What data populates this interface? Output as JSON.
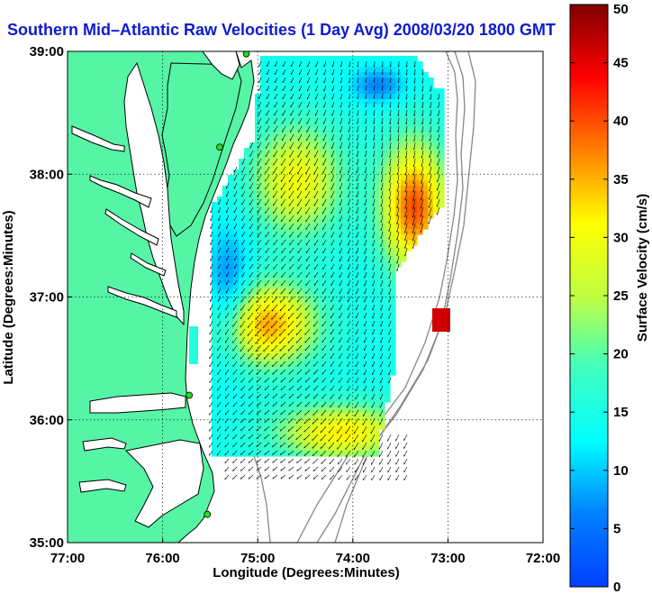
{
  "chart_data": {
    "type": "heatmap",
    "title": "Southern Mid–Atlantic Raw Velocities (1 Day Avg) 2008/03/20 1800 GMT",
    "xlabel": "Longitude (Degrees:Minutes)",
    "ylabel": "Latitude (Degrees:Minutes)",
    "xlim": [
      -77,
      -72
    ],
    "ylim": [
      35,
      39
    ],
    "x_ticks": [
      "77:00",
      "76:00",
      "75:00",
      "74:00",
      "73:00",
      "72:00"
    ],
    "y_ticks": [
      "35:00",
      "36:00",
      "37:00",
      "38:00",
      "39:00"
    ],
    "grid": true,
    "colorbar": {
      "label": "Surface Velocity (cm/s)",
      "range": [
        0,
        50
      ],
      "ticks": [
        "0",
        "5",
        "10",
        "15",
        "20",
        "25",
        "30",
        "35",
        "40",
        "45",
        "50"
      ]
    },
    "stations": [
      {
        "lon": -75.12,
        "lat": 38.98
      },
      {
        "lon": -75.4,
        "lat": 38.22
      },
      {
        "lon": -75.72,
        "lat": 36.2
      },
      {
        "lon": -75.53,
        "lat": 35.23
      }
    ]
  },
  "colors": {
    "land": "#55f5a5",
    "water": "#ffffff",
    "title": "#0d1ccf",
    "coast": "#000000",
    "bathymetry": "#888888"
  }
}
